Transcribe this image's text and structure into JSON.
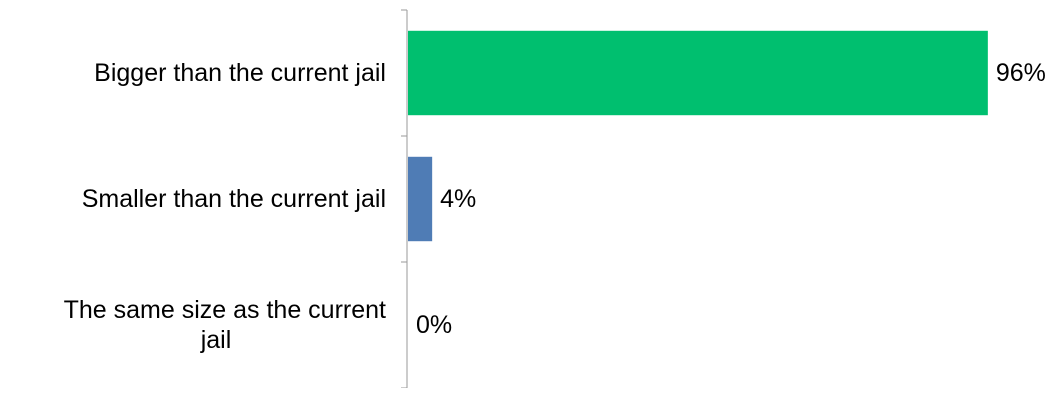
{
  "chart_data": {
    "type": "bar",
    "orientation": "horizontal",
    "categories": [
      "Bigger than the current jail",
      "Smaller than the current jail",
      "The same size as the current jail"
    ],
    "category_lines": [
      [
        "Bigger than the current jail"
      ],
      [
        "Smaller than the current jail"
      ],
      [
        "The same size as the current",
        "jail"
      ]
    ],
    "values": [
      96,
      4,
      0
    ],
    "data_labels": [
      "96%",
      "4%",
      "0%"
    ],
    "unit": "%",
    "xlim": [
      0,
      100
    ],
    "bar_colors": [
      "#00BF6F",
      "#4F7CB5",
      "#4F7CB5"
    ],
    "axis_color": "#9A9A9A",
    "grid": false,
    "legend": "none",
    "title": "",
    "xlabel": "",
    "ylabel": ""
  }
}
